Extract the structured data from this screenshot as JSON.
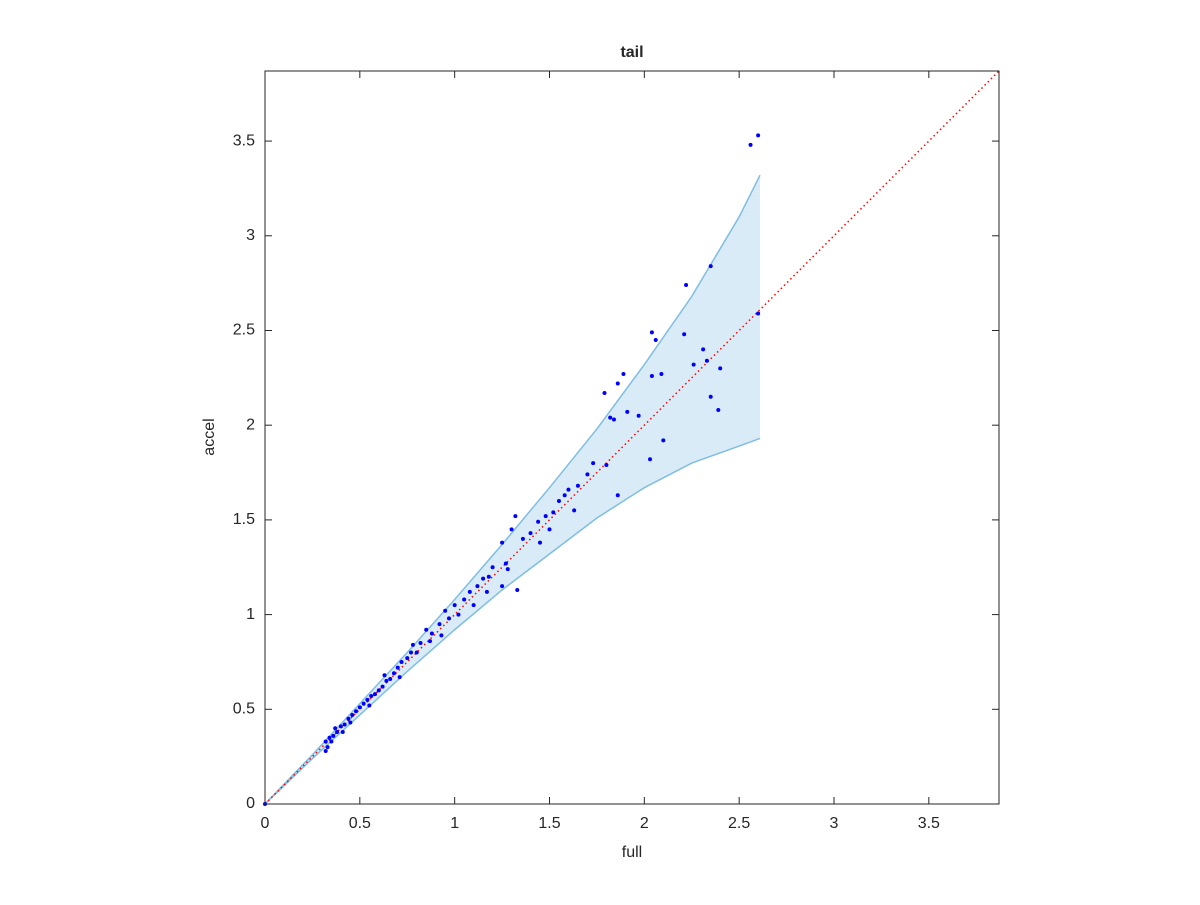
{
  "chart_data": {
    "type": "scatter",
    "title": "tail",
    "xlabel": "full",
    "ylabel": "accel",
    "xlim": [
      0,
      3.87
    ],
    "ylim": [
      0,
      3.87
    ],
    "xticks": [
      0,
      0.5,
      1,
      1.5,
      2,
      2.5,
      3,
      3.5
    ],
    "yticks": [
      0,
      0.5,
      1,
      1.5,
      2,
      2.5,
      3,
      3.5
    ],
    "grid": false,
    "series": [
      {
        "color": "#0000ff",
        "x": [
          0,
          0.32,
          0.32,
          0.33,
          0.34,
          0.35,
          0.36,
          0.37,
          0.38,
          0.4,
          0.41,
          0.42,
          0.44,
          0.45,
          0.46,
          0.48,
          0.5,
          0.52,
          0.54,
          0.55,
          0.56,
          0.58,
          0.6,
          0.62,
          0.63,
          0.64,
          0.66,
          0.68,
          0.7,
          0.71,
          0.72,
          0.75,
          0.77,
          0.78,
          0.8,
          0.82,
          0.85,
          0.87,
          0.88,
          0.92,
          0.93,
          0.95,
          0.97,
          1.0,
          1.02,
          1.05,
          1.08,
          1.1,
          1.12,
          1.15,
          1.17,
          1.18,
          1.2,
          1.25,
          1.25,
          1.27,
          1.28,
          1.3,
          1.32,
          1.33,
          1.36,
          1.4,
          1.44,
          1.45,
          1.48,
          1.5,
          1.52,
          1.55,
          1.58,
          1.6,
          1.63,
          1.65,
          1.7,
          1.73,
          1.79,
          1.8,
          1.82,
          1.84,
          1.86,
          1.86,
          1.89,
          1.91,
          1.97,
          2.03,
          2.04,
          2.04,
          2.06,
          2.09,
          2.1,
          2.21,
          2.22,
          2.26,
          2.31,
          2.33,
          2.35,
          2.35,
          2.39,
          2.4,
          2.56,
          2.6,
          2.6
        ],
        "y": [
          0,
          0.28,
          0.33,
          0.3,
          0.35,
          0.33,
          0.36,
          0.4,
          0.38,
          0.41,
          0.38,
          0.42,
          0.45,
          0.43,
          0.47,
          0.49,
          0.51,
          0.53,
          0.55,
          0.52,
          0.57,
          0.58,
          0.6,
          0.62,
          0.68,
          0.65,
          0.66,
          0.69,
          0.72,
          0.67,
          0.75,
          0.77,
          0.8,
          0.84,
          0.8,
          0.85,
          0.92,
          0.86,
          0.9,
          0.95,
          0.89,
          1.02,
          0.98,
          1.05,
          1.0,
          1.08,
          1.12,
          1.05,
          1.15,
          1.19,
          1.12,
          1.2,
          1.25,
          1.38,
          1.15,
          1.27,
          1.24,
          1.45,
          1.52,
          1.13,
          1.4,
          1.43,
          1.49,
          1.38,
          1.52,
          1.45,
          1.54,
          1.6,
          1.63,
          1.66,
          1.55,
          1.68,
          1.74,
          1.8,
          2.17,
          1.79,
          2.04,
          2.03,
          2.22,
          1.63,
          2.27,
          2.07,
          2.05,
          1.82,
          2.49,
          2.26,
          2.45,
          2.27,
          1.92,
          2.48,
          2.74,
          2.32,
          2.4,
          2.34,
          2.84,
          2.15,
          2.08,
          2.3,
          3.48,
          3.53,
          2.59
        ]
      }
    ],
    "band": {
      "color": "#7fbde2",
      "x": [
        0,
        0.25,
        0.5,
        0.75,
        1,
        1.25,
        1.5,
        1.75,
        2,
        2.25,
        2.5,
        2.61
      ],
      "upper": [
        0,
        0.26,
        0.53,
        0.8,
        1.08,
        1.37,
        1.67,
        1.98,
        2.32,
        2.68,
        3.1,
        3.32
      ],
      "lower": [
        0,
        0.24,
        0.47,
        0.7,
        0.92,
        1.13,
        1.32,
        1.51,
        1.67,
        1.8,
        1.89,
        1.93
      ]
    },
    "reference_line": {
      "color": "#ff0000",
      "style": "dotted",
      "x": [
        0,
        3.87
      ],
      "y": [
        0,
        3.87
      ]
    }
  }
}
